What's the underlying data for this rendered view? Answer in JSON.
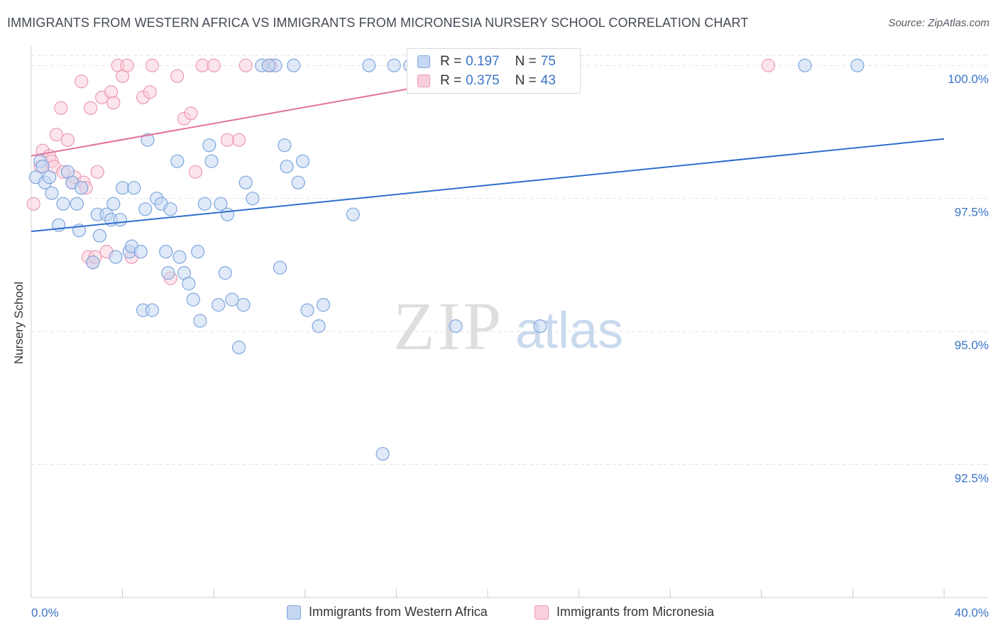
{
  "title": "IMMIGRANTS FROM WESTERN AFRICA VS IMMIGRANTS FROM MICRONESIA NURSERY SCHOOL CORRELATION CHART",
  "source": "Source: ZipAtlas.com",
  "watermark": {
    "zip": "ZIP",
    "atlas": "atlas"
  },
  "colors": {
    "blue_fill": "#c5d7f2",
    "blue_stroke": "#7fa6de",
    "blue_line": "#2f6fcc",
    "pink_fill": "#f9cfdb",
    "pink_stroke": "#ec9ab3",
    "pink_line": "#e3729a",
    "tick_label": "#3a74c8",
    "grid": "#e2e2e2"
  },
  "legend_top": [
    {
      "r_label": "R =",
      "r_value": "0.197",
      "n_label": "N =",
      "n_value": "75"
    },
    {
      "r_label": "R =",
      "r_value": "0.375",
      "n_label": "N =",
      "n_value": "43"
    }
  ],
  "chart_data": {
    "type": "scatter",
    "title": "IMMIGRANTS FROM WESTERN AFRICA VS IMMIGRANTS FROM MICRONESIA NURSERY SCHOOL CORRELATION CHART",
    "xlabel": "",
    "ylabel": "Nursery School",
    "xlim": [
      0,
      40
    ],
    "ylim": [
      90.0,
      100.35
    ],
    "x_tick_labels": [
      "0.0%",
      "40.0%"
    ],
    "y_ticks": [
      {
        "value": 100.0,
        "label": "100.0%"
      },
      {
        "value": 97.5,
        "label": "97.5%"
      },
      {
        "value": 95.0,
        "label": "95.0%"
      },
      {
        "value": 92.5,
        "label": "92.5%"
      }
    ],
    "legend_position": "bottom",
    "series": [
      {
        "name": "Immigrants from Western Africa",
        "color": "blue",
        "r": 0.197,
        "n": 75,
        "trend": {
          "x": [
            0,
            40
          ],
          "y": [
            96.88,
            98.62
          ]
        },
        "points": [
          [
            0.2,
            97.9
          ],
          [
            0.4,
            98.2
          ],
          [
            0.5,
            98.1
          ],
          [
            0.6,
            97.8
          ],
          [
            0.8,
            97.9
          ],
          [
            0.9,
            97.6
          ],
          [
            1.2,
            97.0
          ],
          [
            1.4,
            97.4
          ],
          [
            1.6,
            98.0
          ],
          [
            1.8,
            97.8
          ],
          [
            2.0,
            97.4
          ],
          [
            2.1,
            96.9
          ],
          [
            2.2,
            97.7
          ],
          [
            2.9,
            97.2
          ],
          [
            2.7,
            96.3
          ],
          [
            3.0,
            96.8
          ],
          [
            3.3,
            97.2
          ],
          [
            3.5,
            97.1
          ],
          [
            3.6,
            97.4
          ],
          [
            3.7,
            96.4
          ],
          [
            3.9,
            97.1
          ],
          [
            4.0,
            97.7
          ],
          [
            4.3,
            96.5
          ],
          [
            4.5,
            97.7
          ],
          [
            4.4,
            96.6
          ],
          [
            4.8,
            96.5
          ],
          [
            4.9,
            95.4
          ],
          [
            5.0,
            97.3
          ],
          [
            5.1,
            98.6
          ],
          [
            5.3,
            95.4
          ],
          [
            5.5,
            97.5
          ],
          [
            5.7,
            97.4
          ],
          [
            5.9,
            96.5
          ],
          [
            6.0,
            96.1
          ],
          [
            6.1,
            97.3
          ],
          [
            6.4,
            98.2
          ],
          [
            6.5,
            96.4
          ],
          [
            6.7,
            96.1
          ],
          [
            6.9,
            95.9
          ],
          [
            7.1,
            95.6
          ],
          [
            7.3,
            96.5
          ],
          [
            7.4,
            95.2
          ],
          [
            7.6,
            97.4
          ],
          [
            7.8,
            98.5
          ],
          [
            7.9,
            98.2
          ],
          [
            8.2,
            95.5
          ],
          [
            8.3,
            97.4
          ],
          [
            8.5,
            96.1
          ],
          [
            8.6,
            97.2
          ],
          [
            8.8,
            95.6
          ],
          [
            9.1,
            94.7
          ],
          [
            9.3,
            95.5
          ],
          [
            9.4,
            97.8
          ],
          [
            9.7,
            97.5
          ],
          [
            10.1,
            100.0
          ],
          [
            10.7,
            100.0
          ],
          [
            10.9,
            96.2
          ],
          [
            11.1,
            98.5
          ],
          [
            11.2,
            98.1
          ],
          [
            11.5,
            100.0
          ],
          [
            11.7,
            97.8
          ],
          [
            11.9,
            98.2
          ],
          [
            12.1,
            95.4
          ],
          [
            12.6,
            95.1
          ],
          [
            12.8,
            95.5
          ],
          [
            14.1,
            97.2
          ],
          [
            14.8,
            100.0
          ],
          [
            15.4,
            92.7
          ],
          [
            15.9,
            100.0
          ],
          [
            16.6,
            100.0
          ],
          [
            18.6,
            95.1
          ],
          [
            22.3,
            95.1
          ],
          [
            33.9,
            100.0
          ],
          [
            36.2,
            100.0
          ],
          [
            10.4,
            100.0
          ]
        ]
      },
      {
        "name": "Immigrants from Micronesia",
        "color": "pink",
        "r": 0.375,
        "n": 43,
        "trend": {
          "x": [
            0,
            22.3
          ],
          "y": [
            98.3,
            100.0
          ]
        },
        "points": [
          [
            0.1,
            97.4
          ],
          [
            0.4,
            98.1
          ],
          [
            0.5,
            98.4
          ],
          [
            0.8,
            98.3
          ],
          [
            0.9,
            98.2
          ],
          [
            1.0,
            98.1
          ],
          [
            1.1,
            98.7
          ],
          [
            1.3,
            99.2
          ],
          [
            1.4,
            98.0
          ],
          [
            1.6,
            98.6
          ],
          [
            1.8,
            97.8
          ],
          [
            1.9,
            97.9
          ],
          [
            2.2,
            99.7
          ],
          [
            2.3,
            97.8
          ],
          [
            2.4,
            97.7
          ],
          [
            2.5,
            96.4
          ],
          [
            2.6,
            99.2
          ],
          [
            2.7,
            96.3
          ],
          [
            2.8,
            96.4
          ],
          [
            2.9,
            98.0
          ],
          [
            3.1,
            99.4
          ],
          [
            3.3,
            96.5
          ],
          [
            3.5,
            99.5
          ],
          [
            3.6,
            99.3
          ],
          [
            3.8,
            100.0
          ],
          [
            4.0,
            99.8
          ],
          [
            4.2,
            100.0
          ],
          [
            4.4,
            96.4
          ],
          [
            4.9,
            99.4
          ],
          [
            5.2,
            99.5
          ],
          [
            5.3,
            100.0
          ],
          [
            6.1,
            96.0
          ],
          [
            6.4,
            99.8
          ],
          [
            6.7,
            99.0
          ],
          [
            7.0,
            99.1
          ],
          [
            7.2,
            98.0
          ],
          [
            7.5,
            100.0
          ],
          [
            8.0,
            100.0
          ],
          [
            8.6,
            98.6
          ],
          [
            9.1,
            98.6
          ],
          [
            9.4,
            100.0
          ],
          [
            10.5,
            100.0
          ],
          [
            32.3,
            100.0
          ]
        ]
      }
    ]
  },
  "legend_bottom": [
    {
      "label": "Immigrants from Western Africa"
    },
    {
      "label": "Immigrants from Micronesia"
    }
  ]
}
